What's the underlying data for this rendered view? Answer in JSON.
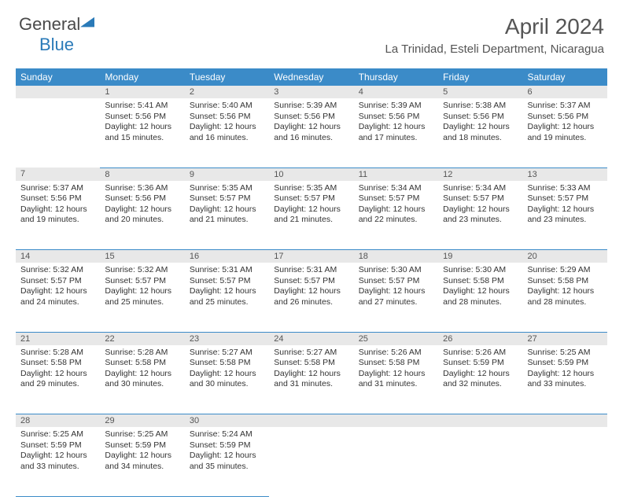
{
  "logo": {
    "word1": "General",
    "word2": "Blue"
  },
  "title": "April 2024",
  "location": "La Trinidad, Esteli Department, Nicaragua",
  "colors": {
    "header_bg": "#3b8bc8",
    "header_text": "#ffffff",
    "daynum_bg": "#e8e8e8",
    "daynum_text": "#555555",
    "cell_border": "#3b8bc8",
    "body_text": "#333333",
    "title_text": "#555555",
    "logo_gray": "#4a4a4a",
    "logo_blue": "#2a7ab8"
  },
  "typography": {
    "title_fontsize": 28,
    "location_fontsize": 15,
    "dayheader_fontsize": 12,
    "daynum_fontsize": 11,
    "info_fontsize": 10.5
  },
  "daysOfWeek": [
    "Sunday",
    "Monday",
    "Tuesday",
    "Wednesday",
    "Thursday",
    "Friday",
    "Saturday"
  ],
  "weeks": [
    [
      null,
      {
        "n": "1",
        "sr": "5:41 AM",
        "ss": "5:56 PM",
        "dl": "12 hours and 15 minutes."
      },
      {
        "n": "2",
        "sr": "5:40 AM",
        "ss": "5:56 PM",
        "dl": "12 hours and 16 minutes."
      },
      {
        "n": "3",
        "sr": "5:39 AM",
        "ss": "5:56 PM",
        "dl": "12 hours and 16 minutes."
      },
      {
        "n": "4",
        "sr": "5:39 AM",
        "ss": "5:56 PM",
        "dl": "12 hours and 17 minutes."
      },
      {
        "n": "5",
        "sr": "5:38 AM",
        "ss": "5:56 PM",
        "dl": "12 hours and 18 minutes."
      },
      {
        "n": "6",
        "sr": "5:37 AM",
        "ss": "5:56 PM",
        "dl": "12 hours and 19 minutes."
      }
    ],
    [
      {
        "n": "7",
        "sr": "5:37 AM",
        "ss": "5:56 PM",
        "dl": "12 hours and 19 minutes."
      },
      {
        "n": "8",
        "sr": "5:36 AM",
        "ss": "5:56 PM",
        "dl": "12 hours and 20 minutes."
      },
      {
        "n": "9",
        "sr": "5:35 AM",
        "ss": "5:57 PM",
        "dl": "12 hours and 21 minutes."
      },
      {
        "n": "10",
        "sr": "5:35 AM",
        "ss": "5:57 PM",
        "dl": "12 hours and 21 minutes."
      },
      {
        "n": "11",
        "sr": "5:34 AM",
        "ss": "5:57 PM",
        "dl": "12 hours and 22 minutes."
      },
      {
        "n": "12",
        "sr": "5:34 AM",
        "ss": "5:57 PM",
        "dl": "12 hours and 23 minutes."
      },
      {
        "n": "13",
        "sr": "5:33 AM",
        "ss": "5:57 PM",
        "dl": "12 hours and 23 minutes."
      }
    ],
    [
      {
        "n": "14",
        "sr": "5:32 AM",
        "ss": "5:57 PM",
        "dl": "12 hours and 24 minutes."
      },
      {
        "n": "15",
        "sr": "5:32 AM",
        "ss": "5:57 PM",
        "dl": "12 hours and 25 minutes."
      },
      {
        "n": "16",
        "sr": "5:31 AM",
        "ss": "5:57 PM",
        "dl": "12 hours and 25 minutes."
      },
      {
        "n": "17",
        "sr": "5:31 AM",
        "ss": "5:57 PM",
        "dl": "12 hours and 26 minutes."
      },
      {
        "n": "18",
        "sr": "5:30 AM",
        "ss": "5:57 PM",
        "dl": "12 hours and 27 minutes."
      },
      {
        "n": "19",
        "sr": "5:30 AM",
        "ss": "5:58 PM",
        "dl": "12 hours and 28 minutes."
      },
      {
        "n": "20",
        "sr": "5:29 AM",
        "ss": "5:58 PM",
        "dl": "12 hours and 28 minutes."
      }
    ],
    [
      {
        "n": "21",
        "sr": "5:28 AM",
        "ss": "5:58 PM",
        "dl": "12 hours and 29 minutes."
      },
      {
        "n": "22",
        "sr": "5:28 AM",
        "ss": "5:58 PM",
        "dl": "12 hours and 30 minutes."
      },
      {
        "n": "23",
        "sr": "5:27 AM",
        "ss": "5:58 PM",
        "dl": "12 hours and 30 minutes."
      },
      {
        "n": "24",
        "sr": "5:27 AM",
        "ss": "5:58 PM",
        "dl": "12 hours and 31 minutes."
      },
      {
        "n": "25",
        "sr": "5:26 AM",
        "ss": "5:58 PM",
        "dl": "12 hours and 31 minutes."
      },
      {
        "n": "26",
        "sr": "5:26 AM",
        "ss": "5:59 PM",
        "dl": "12 hours and 32 minutes."
      },
      {
        "n": "27",
        "sr": "5:25 AM",
        "ss": "5:59 PM",
        "dl": "12 hours and 33 minutes."
      }
    ],
    [
      {
        "n": "28",
        "sr": "5:25 AM",
        "ss": "5:59 PM",
        "dl": "12 hours and 33 minutes."
      },
      {
        "n": "29",
        "sr": "5:25 AM",
        "ss": "5:59 PM",
        "dl": "12 hours and 34 minutes."
      },
      {
        "n": "30",
        "sr": "5:24 AM",
        "ss": "5:59 PM",
        "dl": "12 hours and 35 minutes."
      },
      null,
      null,
      null,
      null
    ]
  ],
  "labels": {
    "sunrise": "Sunrise: ",
    "sunset": "Sunset: ",
    "daylight": "Daylight: "
  }
}
